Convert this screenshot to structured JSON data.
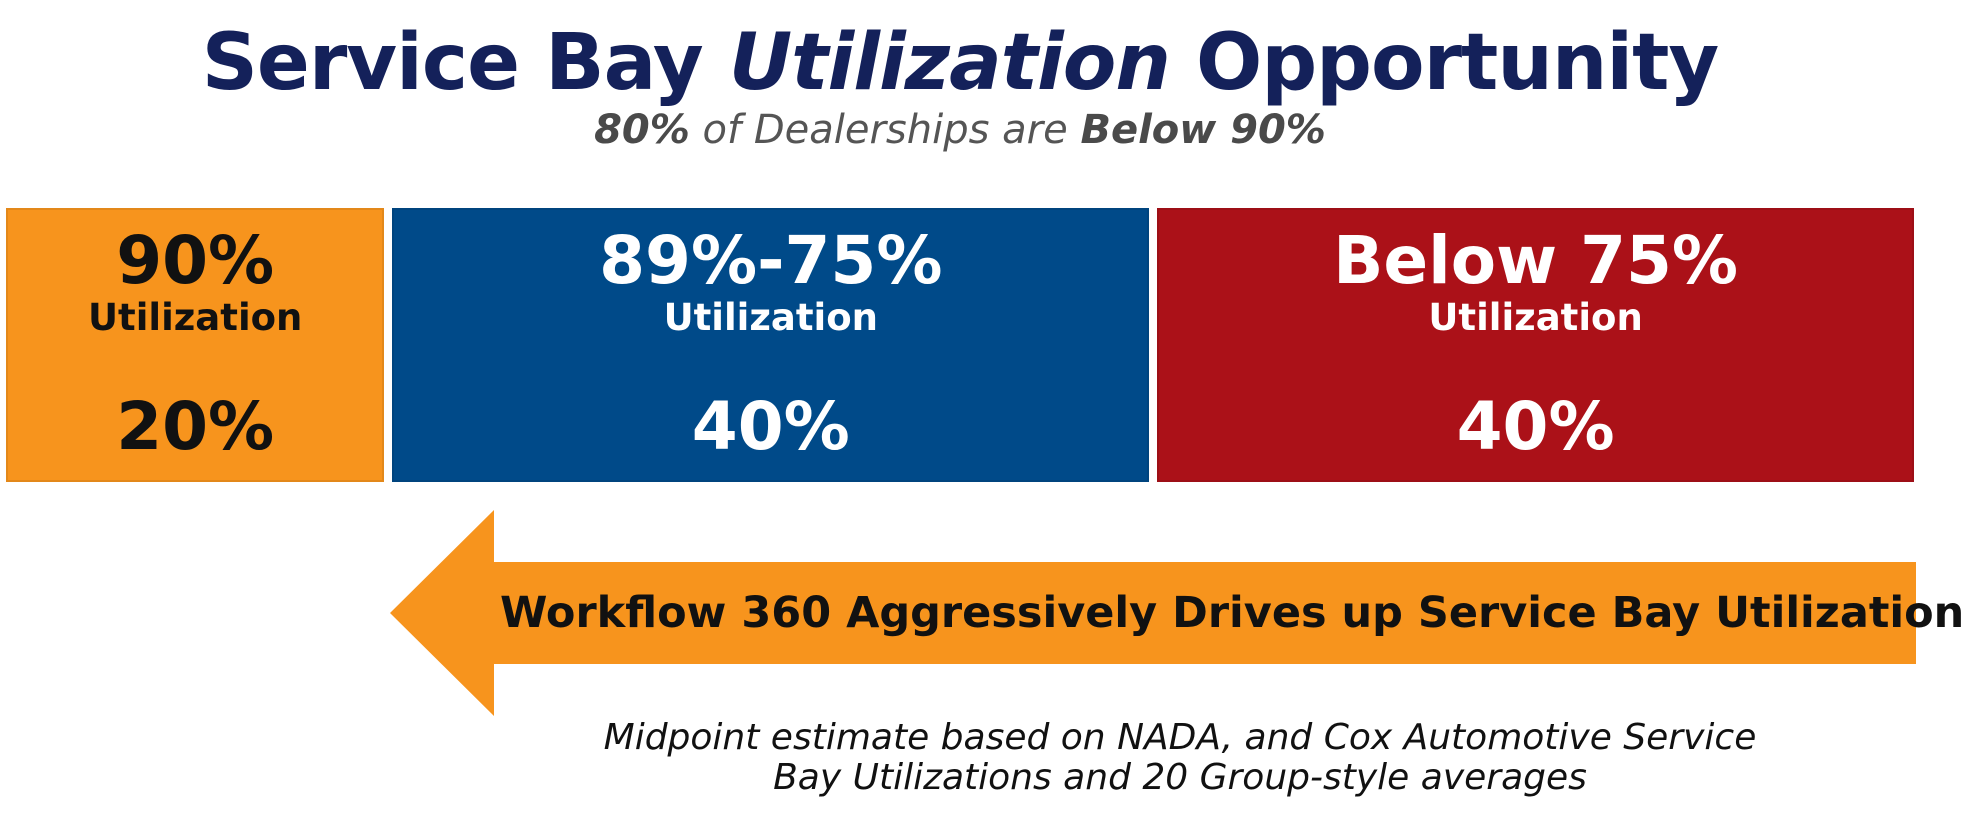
{
  "header": {
    "title_part1": "Service Bay ",
    "title_part2": "Utilization",
    "title_part3": " Opportunity",
    "subtitle_part1": "80%",
    "subtitle_part2": " of Dealerships are ",
    "subtitle_part3": "Below 90%"
  },
  "chart_data": {
    "type": "bar",
    "orientation": "horizontal-stacked",
    "categories": [
      "90%",
      "89%-75%",
      "Below 75%"
    ],
    "category_sublabel": "Utilization",
    "values": [
      20,
      40,
      40
    ],
    "value_labels": [
      "20%",
      "40%",
      "40%"
    ],
    "colors": [
      "#f7941d",
      "#004a89",
      "#ab1118"
    ],
    "text_colors": [
      "#111111",
      "#ffffff",
      "#ffffff"
    ]
  },
  "arrow": {
    "label": "Workflow 360 Aggressively Drives up Service Bay Utilization",
    "color": "#f7941d",
    "direction": "left"
  },
  "footnote": {
    "line1": "Midpoint estimate based on NADA, and Cox Automotive Service",
    "line2": "Bay Utilizations and 20 Group-style averages"
  }
}
